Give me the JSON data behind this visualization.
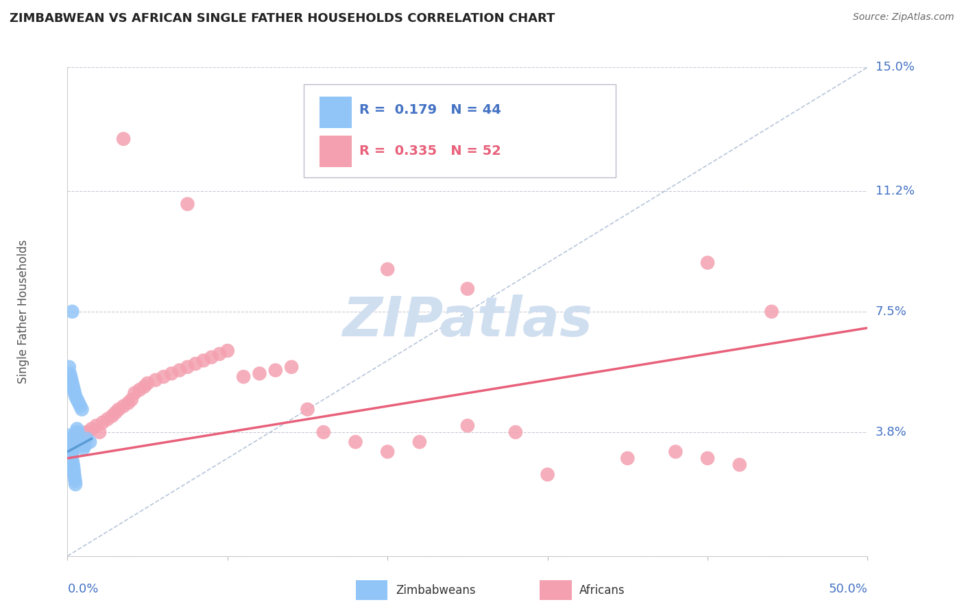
{
  "title": "ZIMBABWEAN VS AFRICAN SINGLE FATHER HOUSEHOLDS CORRELATION CHART",
  "source": "Source: ZipAtlas.com",
  "ylabel": "Single Father Households",
  "ytick_values": [
    0.0,
    3.8,
    7.5,
    11.2,
    15.0
  ],
  "xlim": [
    0.0,
    50.0
  ],
  "ylim": [
    0.0,
    15.0
  ],
  "zim_color": "#92C5F7",
  "afr_color": "#F4A0B0",
  "zim_line_color": "#5B9BD5",
  "afr_line_color": "#E8607A",
  "diag_color": "#AABBD4",
  "watermark_color": "#D0DFF0",
  "legend_text_zim_color": "#4472C4",
  "legend_text_afr_color": "#E8607A",
  "title_color": "#222222",
  "source_color": "#666666",
  "tick_color": "#4472C4",
  "ylabel_color": "#555555",
  "grid_color": "#BBBBCC",
  "zim_x": [
    0.05,
    0.07,
    0.08,
    0.1,
    0.12,
    0.15,
    0.18,
    0.2,
    0.22,
    0.25,
    0.28,
    0.3,
    0.32,
    0.35,
    0.38,
    0.4,
    0.42,
    0.45,
    0.48,
    0.5,
    0.55,
    0.6,
    0.65,
    0.7,
    0.8,
    0.9,
    1.0,
    1.1,
    1.2,
    1.4,
    0.1,
    0.15,
    0.2,
    0.25,
    0.3,
    0.35,
    0.4,
    0.45,
    0.5,
    0.6,
    0.7,
    0.8,
    0.9,
    0.3
  ],
  "zim_y": [
    3.7,
    3.6,
    3.5,
    3.5,
    3.4,
    3.3,
    3.2,
    3.2,
    3.1,
    3.0,
    3.1,
    3.2,
    2.9,
    2.8,
    2.7,
    2.6,
    2.5,
    2.4,
    2.3,
    2.2,
    3.8,
    3.9,
    3.8,
    3.6,
    3.5,
    3.4,
    3.3,
    3.4,
    3.6,
    3.5,
    5.8,
    5.6,
    5.5,
    5.4,
    5.3,
    5.2,
    5.1,
    5.0,
    4.9,
    4.8,
    4.7,
    4.6,
    4.5,
    7.5
  ],
  "afr_x": [
    0.3,
    0.5,
    0.7,
    1.0,
    1.2,
    1.5,
    1.8,
    2.0,
    2.2,
    2.5,
    2.8,
    3.0,
    3.2,
    3.5,
    3.8,
    4.0,
    4.2,
    4.5,
    4.8,
    5.0,
    5.5,
    6.0,
    6.5,
    7.0,
    7.5,
    8.0,
    8.5,
    9.0,
    9.5,
    10.0,
    11.0,
    12.0,
    13.0,
    14.0,
    15.0,
    16.0,
    18.0,
    20.0,
    22.0,
    25.0,
    28.0,
    30.0,
    35.0,
    38.0,
    40.0,
    42.0,
    44.0,
    3.5,
    7.5,
    20.0,
    40.0,
    25.0
  ],
  "afr_y": [
    3.5,
    3.6,
    3.7,
    3.5,
    3.8,
    3.9,
    4.0,
    3.8,
    4.1,
    4.2,
    4.3,
    4.4,
    4.5,
    4.6,
    4.7,
    4.8,
    5.0,
    5.1,
    5.2,
    5.3,
    5.4,
    5.5,
    5.6,
    5.7,
    5.8,
    5.9,
    6.0,
    6.1,
    6.2,
    6.3,
    5.5,
    5.6,
    5.7,
    5.8,
    4.5,
    3.8,
    3.5,
    3.2,
    3.5,
    4.0,
    3.8,
    2.5,
    3.0,
    3.2,
    3.0,
    2.8,
    7.5,
    12.8,
    10.8,
    8.8,
    9.0,
    8.2
  ],
  "afr_line_x0": 0.0,
  "afr_line_y0": 3.0,
  "afr_line_x1": 50.0,
  "afr_line_y1": 7.0,
  "zim_line_x0": 0.0,
  "zim_line_y0": 3.2,
  "zim_line_x1": 1.5,
  "zim_line_y1": 3.6,
  "diag_x0": 0.0,
  "diag_y0": 0.0,
  "diag_x1": 50.0,
  "diag_y1": 15.0
}
